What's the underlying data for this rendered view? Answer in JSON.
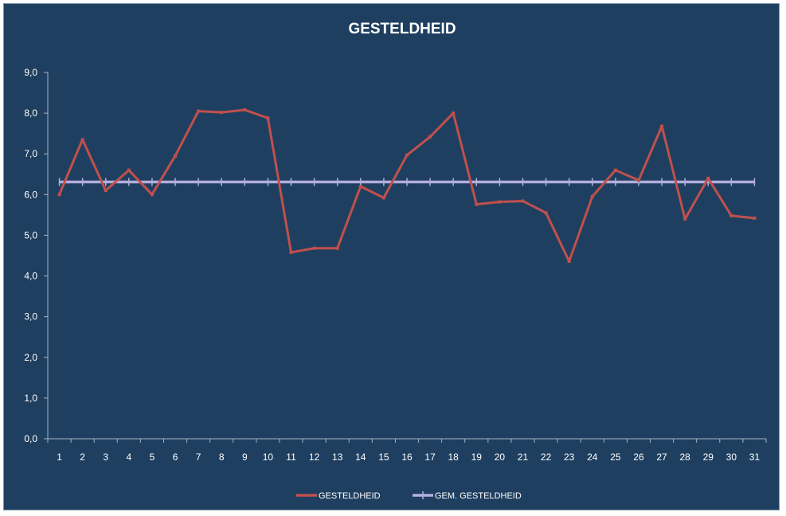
{
  "chart_data": {
    "type": "line",
    "title": "GESTELDHEID",
    "x": [
      1,
      2,
      3,
      4,
      5,
      6,
      7,
      8,
      9,
      10,
      11,
      12,
      13,
      14,
      15,
      16,
      17,
      18,
      19,
      20,
      21,
      22,
      23,
      24,
      25,
      26,
      27,
      28,
      29,
      30,
      31
    ],
    "x_tick_labels": [
      "1",
      "2",
      "3",
      "4",
      "5",
      "6",
      "7",
      "8",
      "9",
      "10",
      "11",
      "12",
      "13",
      "14",
      "15",
      "16",
      "17",
      "18",
      "19",
      "20",
      "21",
      "22",
      "23",
      "24",
      "25",
      "26",
      "27",
      "28",
      "29",
      "30",
      "31"
    ],
    "y_tick_labels": [
      "0,0",
      "1,0",
      "2,0",
      "3,0",
      "4,0",
      "5,0",
      "6,0",
      "7,0",
      "8,0",
      "9,0"
    ],
    "ylim": [
      0,
      9
    ],
    "y_step": 1,
    "grid": false,
    "legend_position": "bottom",
    "series": [
      {
        "name": "GESTELDHEID",
        "color": "#c0504d",
        "values": [
          6.0,
          7.35,
          6.1,
          6.6,
          6.0,
          6.95,
          8.05,
          8.02,
          8.08,
          7.88,
          4.58,
          4.68,
          4.68,
          6.2,
          5.92,
          6.97,
          7.42,
          8.0,
          5.76,
          5.82,
          5.84,
          5.55,
          4.36,
          5.95,
          6.6,
          6.35,
          7.68,
          5.4,
          6.4,
          5.48,
          5.42
        ]
      },
      {
        "name": "GEM. GESTELDHEID",
        "color": "#b3aedc",
        "values": [
          6.31,
          6.31,
          6.31,
          6.31,
          6.31,
          6.31,
          6.31,
          6.31,
          6.31,
          6.31,
          6.31,
          6.31,
          6.31,
          6.31,
          6.31,
          6.31,
          6.31,
          6.31,
          6.31,
          6.31,
          6.31,
          6.31,
          6.31,
          6.31,
          6.31,
          6.31,
          6.31,
          6.31,
          6.31,
          6.31,
          6.31
        ]
      }
    ]
  }
}
